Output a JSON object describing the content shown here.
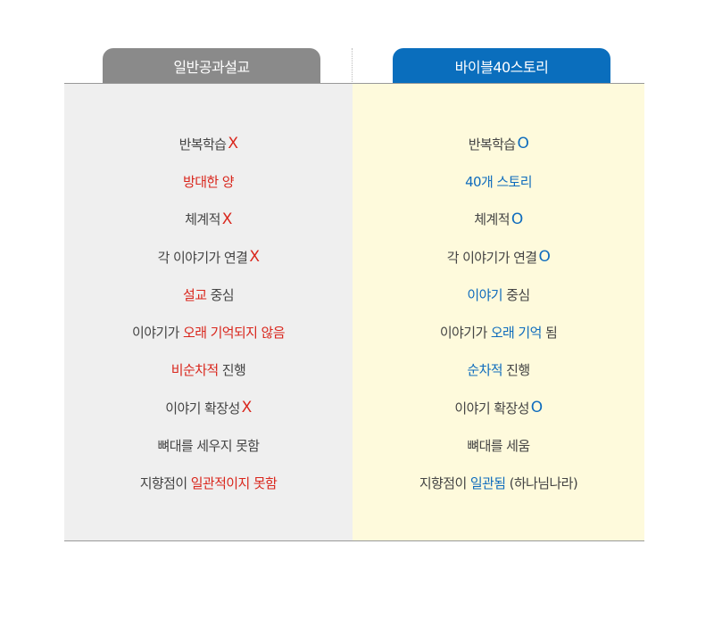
{
  "colors": {
    "left_tab": "#8a8a8a",
    "right_tab": "#0a6ebd",
    "red": "#d9261c",
    "blue": "#0f6cbd",
    "left_bg": "#efefef",
    "right_bg": "#fefadc"
  },
  "left": {
    "title": "일반공과설교",
    "rows": [
      [
        {
          "t": "반복학습"
        },
        {
          "t": "X",
          "hl": true,
          "mark": true
        }
      ],
      [
        {
          "t": "방대한 양",
          "hl": true
        }
      ],
      [
        {
          "t": "체계적"
        },
        {
          "t": "X",
          "hl": true,
          "mark": true
        }
      ],
      [
        {
          "t": "각 이야기가 연결"
        },
        {
          "t": "X",
          "hl": true,
          "mark": true
        }
      ],
      [
        {
          "t": "설교",
          "hl": true
        },
        {
          "t": " 중심"
        }
      ],
      [
        {
          "t": "이야기가 "
        },
        {
          "t": "오래 기억되지 않음",
          "hl": true
        }
      ],
      [
        {
          "t": "비순차적",
          "hl": true
        },
        {
          "t": " 진행"
        }
      ],
      [
        {
          "t": "이야기 확장성"
        },
        {
          "t": "X",
          "hl": true,
          "mark": true
        }
      ],
      [
        {
          "t": "뼈대를 세우지 못함"
        }
      ],
      [
        {
          "t": "지향점이 "
        },
        {
          "t": "일관적이지 못함",
          "hl": true
        }
      ]
    ]
  },
  "right": {
    "title": "바이블40스토리",
    "rows": [
      [
        {
          "t": "반복학습"
        },
        {
          "t": "O",
          "hl": true,
          "mark": true
        }
      ],
      [
        {
          "t": "40개 스토리",
          "hl": true
        }
      ],
      [
        {
          "t": "체계적"
        },
        {
          "t": "O",
          "hl": true,
          "mark": true
        }
      ],
      [
        {
          "t": "각 이야기가 연결"
        },
        {
          "t": "O",
          "hl": true,
          "mark": true
        }
      ],
      [
        {
          "t": "이야기",
          "hl": true
        },
        {
          "t": " 중심"
        }
      ],
      [
        {
          "t": "이야기가 "
        },
        {
          "t": "오래 기억",
          "hl": true
        },
        {
          "t": " 됨"
        }
      ],
      [
        {
          "t": "순차적",
          "hl": true
        },
        {
          "t": " 진행"
        }
      ],
      [
        {
          "t": "이야기 확장성"
        },
        {
          "t": "O",
          "hl": true,
          "mark": true
        }
      ],
      [
        {
          "t": "뼈대를 세움"
        }
      ],
      [
        {
          "t": "지향점이 "
        },
        {
          "t": "일관됨",
          "hl": true
        },
        {
          "t": " (하나님나라)"
        }
      ]
    ]
  }
}
